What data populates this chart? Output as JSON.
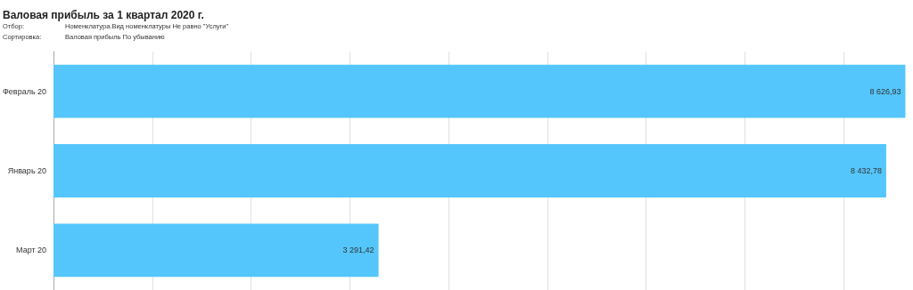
{
  "chart_data": {
    "type": "bar",
    "orientation": "horizontal",
    "title": "Валовая прибыль за 1 квартал 2020 г.",
    "annotations": [
      "Отбор:",
      "Номенклатура.Вид номенклатуры Не равно \"Услуги\"",
      "Сортировка:",
      "Валовая прибыль По убыванию"
    ],
    "categories": [
      "Февраль 20",
      "Январь 20",
      "Март 20"
    ],
    "values": [
      8626.93,
      8432.78,
      3291.42
    ],
    "value_labels": [
      "8 626,93",
      "8 432,78",
      "3 291,42"
    ],
    "color": "#54c6fc",
    "xlim": [
      0,
      8650
    ],
    "xticks": [
      {
        "value": 0,
        "label": null
      },
      {
        "value": 1000,
        "label": null
      },
      {
        "value": 2000,
        "label": null
      },
      {
        "value": 3000,
        "label": null
      },
      {
        "value": 4000,
        "label": null
      },
      {
        "value": 5000,
        "label": null
      },
      {
        "value": 6000,
        "label": null
      },
      {
        "value": 7000,
        "label": null
      },
      {
        "value": 8000,
        "label": null
      }
    ],
    "grid": "x",
    "tick_labels": "y"
  }
}
